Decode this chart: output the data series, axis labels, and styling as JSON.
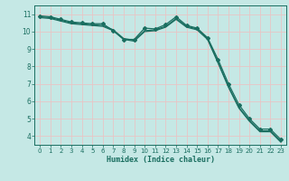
{
  "xlabel": "Humidex (Indice chaleur)",
  "ylabel": "",
  "bg_color": "#c5e8e5",
  "grid_color": "#e8c5c5",
  "line_color": "#1a6e60",
  "xlim": [
    -0.5,
    23.5
  ],
  "ylim": [
    3.5,
    11.5
  ],
  "xticks": [
    0,
    1,
    2,
    3,
    4,
    5,
    6,
    7,
    8,
    9,
    10,
    11,
    12,
    13,
    14,
    15,
    16,
    17,
    18,
    19,
    20,
    21,
    22,
    23
  ],
  "yticks": [
    4,
    5,
    6,
    7,
    8,
    9,
    10,
    11
  ],
  "line1": {
    "x": [
      0,
      1,
      2,
      3,
      4,
      5,
      6,
      7,
      8,
      9,
      10,
      11,
      12,
      13,
      14,
      15,
      16,
      17,
      18,
      19,
      20,
      21,
      22,
      23
    ],
    "y": [
      10.9,
      10.85,
      10.7,
      10.55,
      10.5,
      10.45,
      10.45,
      10.05,
      9.55,
      9.55,
      10.2,
      10.15,
      10.4,
      10.85,
      10.35,
      10.2,
      9.65,
      8.4,
      7.0,
      5.8,
      5.0,
      4.4,
      4.4,
      3.8
    ]
  },
  "line2": {
    "x": [
      0,
      1,
      2,
      3,
      4,
      5,
      6,
      7,
      8,
      9,
      10,
      11,
      12,
      13,
      14,
      15,
      16,
      17,
      18,
      19,
      20,
      21,
      22,
      23
    ],
    "y": [
      10.85,
      10.8,
      10.65,
      10.5,
      10.45,
      10.4,
      10.35,
      10.1,
      9.6,
      9.5,
      10.05,
      10.1,
      10.3,
      10.75,
      10.3,
      10.15,
      9.6,
      8.25,
      6.85,
      5.65,
      4.9,
      4.3,
      4.3,
      3.7
    ]
  },
  "line3": {
    "x": [
      0,
      1,
      2,
      3,
      4,
      5,
      6,
      7,
      8,
      9,
      10,
      11,
      12,
      13,
      14,
      15,
      16,
      17,
      18,
      19,
      20,
      21,
      22,
      23
    ],
    "y": [
      10.8,
      10.75,
      10.6,
      10.45,
      10.4,
      10.35,
      10.3,
      10.05,
      9.55,
      9.45,
      10.0,
      10.05,
      10.25,
      10.7,
      10.25,
      10.1,
      9.55,
      8.2,
      6.8,
      5.6,
      4.85,
      4.25,
      4.25,
      3.65
    ]
  }
}
